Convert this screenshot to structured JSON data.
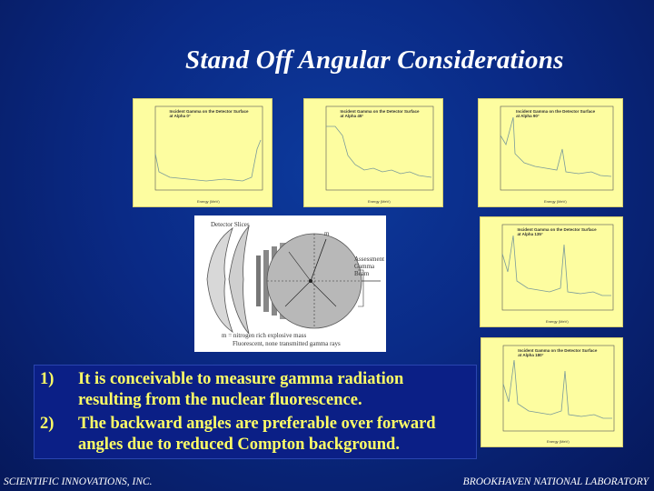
{
  "slide": {
    "title": "Stand Off Angular Considerations",
    "items": [
      {
        "number": "1)",
        "lines": [
          "It is conceivable to measure gamma radiation",
          "resulting from the nuclear fluorescence."
        ]
      },
      {
        "number": "2)",
        "lines": [
          "The backward angles are preferable over forward",
          "angles due to reduced Compton background."
        ]
      }
    ],
    "footer_left": "SCIENTIFIC INNOVATIONS, INC.",
    "footer_right": "BROOKHAVEN NATIONAL LABORATORY"
  },
  "diagram": {
    "labels": {
      "top_left": "Detector Slices",
      "m": "m",
      "right": [
        "Assessment",
        "Gamma",
        "Beam"
      ],
      "legend_1": "m = nitrogen rich explosive mass",
      "legend_2": "Fluorescent, none transmitted gamma rays"
    }
  },
  "plots": [
    {
      "title": [
        "Incident Gamma on the Detector Surface",
        "at Alpha 0°"
      ]
    },
    {
      "title": [
        "Incident Gamma on the Detector Surface",
        "at Alpha 45°"
      ]
    },
    {
      "title": [
        "Incident Gamma on the Detector Surface",
        "at Alpha 90°"
      ]
    },
    {
      "title": [
        "Incident Gamma on the Detector Surface",
        "at Alpha 135°"
      ]
    },
    {
      "title": [
        "Incident Gamma on the Detector Surface",
        "at Alpha 180°"
      ]
    }
  ],
  "colors": {
    "plot_bg": "#fdfda0",
    "text_yellow": "#ffff66"
  }
}
